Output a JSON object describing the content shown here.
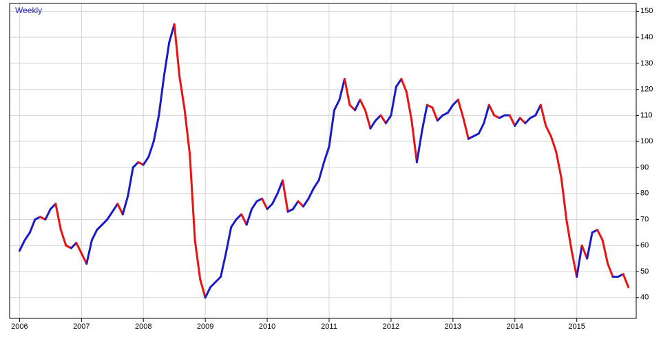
{
  "chart_data": {
    "type": "line",
    "title": "Weekly",
    "title_color": "#1a1acc",
    "up_color": "#1a1acc",
    "down_color": "#ee1111",
    "x": [
      2006,
      2006.083,
      2006.167,
      2006.25,
      2006.333,
      2006.417,
      2006.5,
      2006.583,
      2006.667,
      2006.75,
      2006.833,
      2006.917,
      2007,
      2007.083,
      2007.167,
      2007.25,
      2007.333,
      2007.417,
      2007.5,
      2007.583,
      2007.667,
      2007.75,
      2007.833,
      2007.917,
      2008,
      2008.083,
      2008.167,
      2008.25,
      2008.333,
      2008.417,
      2008.5,
      2008.583,
      2008.667,
      2008.75,
      2008.833,
      2008.917,
      2009,
      2009.083,
      2009.167,
      2009.25,
      2009.333,
      2009.417,
      2009.5,
      2009.583,
      2009.667,
      2009.75,
      2009.833,
      2009.917,
      2010,
      2010.083,
      2010.167,
      2010.25,
      2010.333,
      2010.417,
      2010.5,
      2010.583,
      2010.667,
      2010.75,
      2010.833,
      2010.917,
      2011,
      2011.083,
      2011.167,
      2011.25,
      2011.333,
      2011.417,
      2011.5,
      2011.583,
      2011.667,
      2011.75,
      2011.833,
      2011.917,
      2012,
      2012.083,
      2012.167,
      2012.25,
      2012.333,
      2012.417,
      2012.5,
      2012.583,
      2012.667,
      2012.75,
      2012.833,
      2012.917,
      2013,
      2013.083,
      2013.167,
      2013.25,
      2013.333,
      2013.417,
      2013.5,
      2013.583,
      2013.667,
      2013.75,
      2013.833,
      2013.917,
      2014,
      2014.083,
      2014.167,
      2014.25,
      2014.333,
      2014.417,
      2014.5,
      2014.583,
      2014.667,
      2014.75,
      2014.833,
      2014.917,
      2015,
      2015.083,
      2015.167,
      2015.25,
      2015.333,
      2015.417,
      2015.5,
      2015.583,
      2015.667,
      2015.75,
      2015.833
    ],
    "values": [
      58,
      62,
      65,
      70,
      71,
      70,
      74,
      76,
      66,
      60,
      59,
      61,
      57,
      53,
      62,
      66,
      68,
      70,
      73,
      76,
      72,
      79,
      90,
      92,
      91,
      94,
      100,
      110,
      125,
      138,
      145,
      125,
      112,
      95,
      62,
      47,
      40,
      44,
      46,
      48,
      57,
      67,
      70,
      72,
      68,
      74,
      77,
      78,
      74,
      76,
      80,
      85,
      73,
      74,
      77,
      75,
      78,
      82,
      85,
      92,
      98,
      112,
      116,
      124,
      114,
      112,
      116,
      112,
      105,
      108,
      110,
      107,
      110,
      121,
      124,
      119,
      108,
      92,
      104,
      114,
      113,
      108,
      110,
      111,
      114,
      116,
      109,
      101,
      102,
      103,
      107,
      114,
      110,
      109,
      110,
      110,
      106,
      109,
      107,
      109,
      110,
      114,
      106,
      102,
      96,
      86,
      70,
      58,
      48,
      60,
      55,
      65,
      66,
      62,
      53,
      48,
      48,
      49,
      44
    ],
    "xlim": [
      2005.84,
      2015.96
    ],
    "ylim": [
      32,
      153
    ],
    "xticks": [
      2006,
      2007,
      2008,
      2009,
      2010,
      2011,
      2012,
      2013,
      2014,
      2015
    ],
    "yticks": [
      40,
      50,
      60,
      70,
      80,
      90,
      100,
      110,
      120,
      130,
      140,
      150
    ],
    "grid": true
  }
}
